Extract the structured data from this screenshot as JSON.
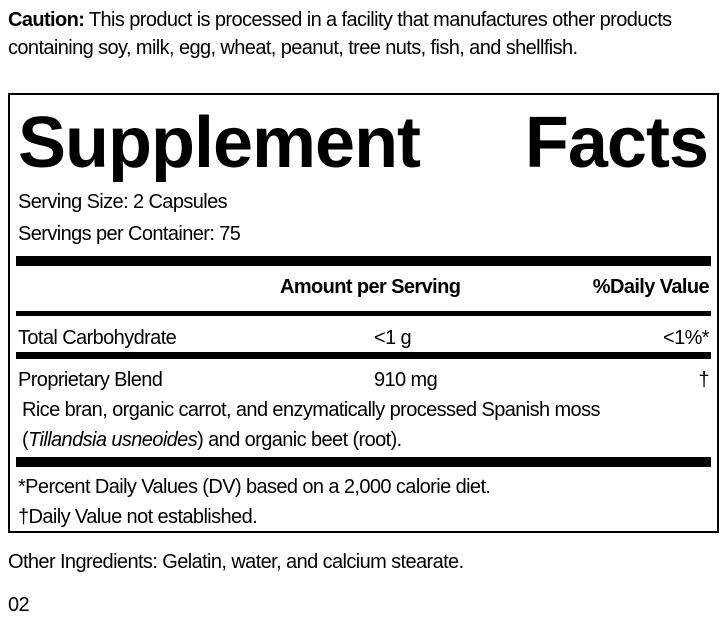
{
  "caution": {
    "label": "Caution:",
    "text": " This product is processed in a facility that manufactures other products containing soy, milk, egg, wheat, peanut, tree nuts, fish, and shellfish."
  },
  "panel": {
    "title_word1": "Supplement",
    "title_word2": "Facts",
    "serving_size": "Serving Size: 2 Capsules",
    "servings_per_container": "Servings per Container: 75",
    "header_amount": "Amount per Serving",
    "header_dv": "%Daily Value",
    "rows": [
      {
        "name": "Total Carbohydrate",
        "amount": "<1 g",
        "dv": "<1%*"
      },
      {
        "name": "Proprietary Blend",
        "amount": "910 mg",
        "dv": "†"
      }
    ],
    "blend_desc_1": "Rice bran, organic carrot, and enzymatically processed Spanish moss",
    "blend_desc_open": "(",
    "blend_desc_italic": "Tillandsia usneoides",
    "blend_desc_2": ") and organic beet (root).",
    "footnote_1": "*Percent Daily Values (DV) based on a 2,000 calorie diet.",
    "footnote_2": "†Daily Value not established."
  },
  "other_ingredients": "Other Ingredients: Gelatin, water, and calcium stearate.",
  "page_number": "02"
}
